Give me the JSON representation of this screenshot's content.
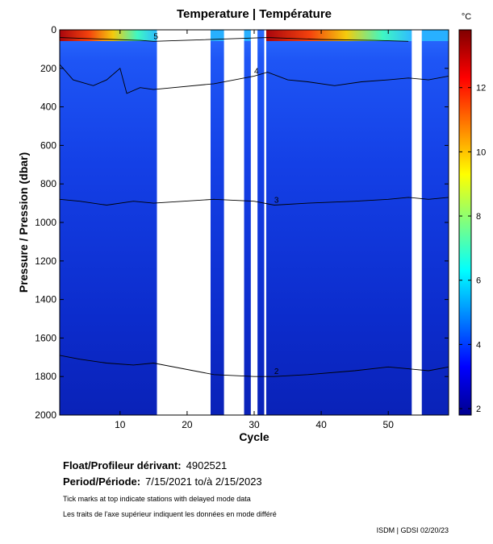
{
  "chart_data": {
    "type": "heatmap",
    "title": "Temperature | Température",
    "xlabel": "Cycle",
    "ylabel": "Pressure / Pression (dbar)",
    "xlim": [
      1,
      59
    ],
    "ylim": [
      2000,
      0
    ],
    "x_ticks": [
      10,
      20,
      30,
      40,
      50
    ],
    "y_ticks": [
      0,
      200,
      400,
      600,
      800,
      1000,
      1200,
      1400,
      1600,
      1800,
      2000
    ],
    "colorbar": {
      "unit": "°C",
      "range": [
        1.8,
        13.8
      ],
      "ticks": [
        2,
        4,
        6,
        8,
        10,
        12
      ]
    },
    "data_gaps_cycles": [
      [
        15.5,
        23.5
      ],
      [
        25.5,
        28.5
      ],
      [
        29.5,
        30.5
      ],
      [
        31.5,
        31.8
      ],
      [
        53.5,
        55
      ]
    ],
    "contours": [
      {
        "level": 4,
        "label": "4",
        "depth_profile": [
          [
            1,
            180
          ],
          [
            3,
            260
          ],
          [
            6,
            290
          ],
          [
            8,
            260
          ],
          [
            10,
            200
          ],
          [
            11,
            330
          ],
          [
            13,
            300
          ],
          [
            15,
            310
          ],
          [
            24,
            280
          ],
          [
            30,
            240
          ],
          [
            32,
            220
          ],
          [
            35,
            260
          ],
          [
            38,
            270
          ],
          [
            42,
            290
          ],
          [
            46,
            270
          ],
          [
            50,
            260
          ],
          [
            53,
            250
          ],
          [
            56,
            260
          ],
          [
            59,
            240
          ]
        ]
      },
      {
        "level": 3,
        "label": "3",
        "depth_profile": [
          [
            1,
            880
          ],
          [
            4,
            890
          ],
          [
            8,
            910
          ],
          [
            12,
            890
          ],
          [
            15,
            900
          ],
          [
            24,
            880
          ],
          [
            30,
            890
          ],
          [
            33,
            910
          ],
          [
            38,
            900
          ],
          [
            45,
            890
          ],
          [
            50,
            880
          ],
          [
            53,
            870
          ],
          [
            56,
            880
          ],
          [
            59,
            870
          ]
        ]
      },
      {
        "level": 2,
        "label": "2",
        "depth_profile": [
          [
            1,
            1690
          ],
          [
            4,
            1710
          ],
          [
            8,
            1730
          ],
          [
            12,
            1740
          ],
          [
            15,
            1730
          ],
          [
            24,
            1790
          ],
          [
            30,
            1800
          ],
          [
            33,
            1800
          ],
          [
            38,
            1790
          ],
          [
            45,
            1770
          ],
          [
            50,
            1750
          ],
          [
            53,
            1760
          ],
          [
            56,
            1770
          ],
          [
            59,
            1750
          ]
        ]
      },
      {
        "level": 5,
        "label": "5",
        "depth_profile": [
          [
            1,
            40
          ],
          [
            5,
            45
          ],
          [
            9,
            50
          ],
          [
            13,
            55
          ],
          [
            15,
            60
          ],
          [
            32,
            40
          ],
          [
            40,
            50
          ],
          [
            48,
            55
          ],
          [
            53,
            60
          ]
        ]
      }
    ]
  },
  "footer": {
    "float_label": "Float/Profileur dérivant:",
    "float_value": "4902521",
    "period_label": "Period/Période:",
    "period_value": "7/15/2021  to/à  2/15/2023",
    "note_en": "Tick marks at top indicate stations with delayed mode data",
    "note_fr": "Les traits de l'axe supérieur indiquent les données en mode différé",
    "credit": "ISDM | GDSI  02/20/23"
  }
}
